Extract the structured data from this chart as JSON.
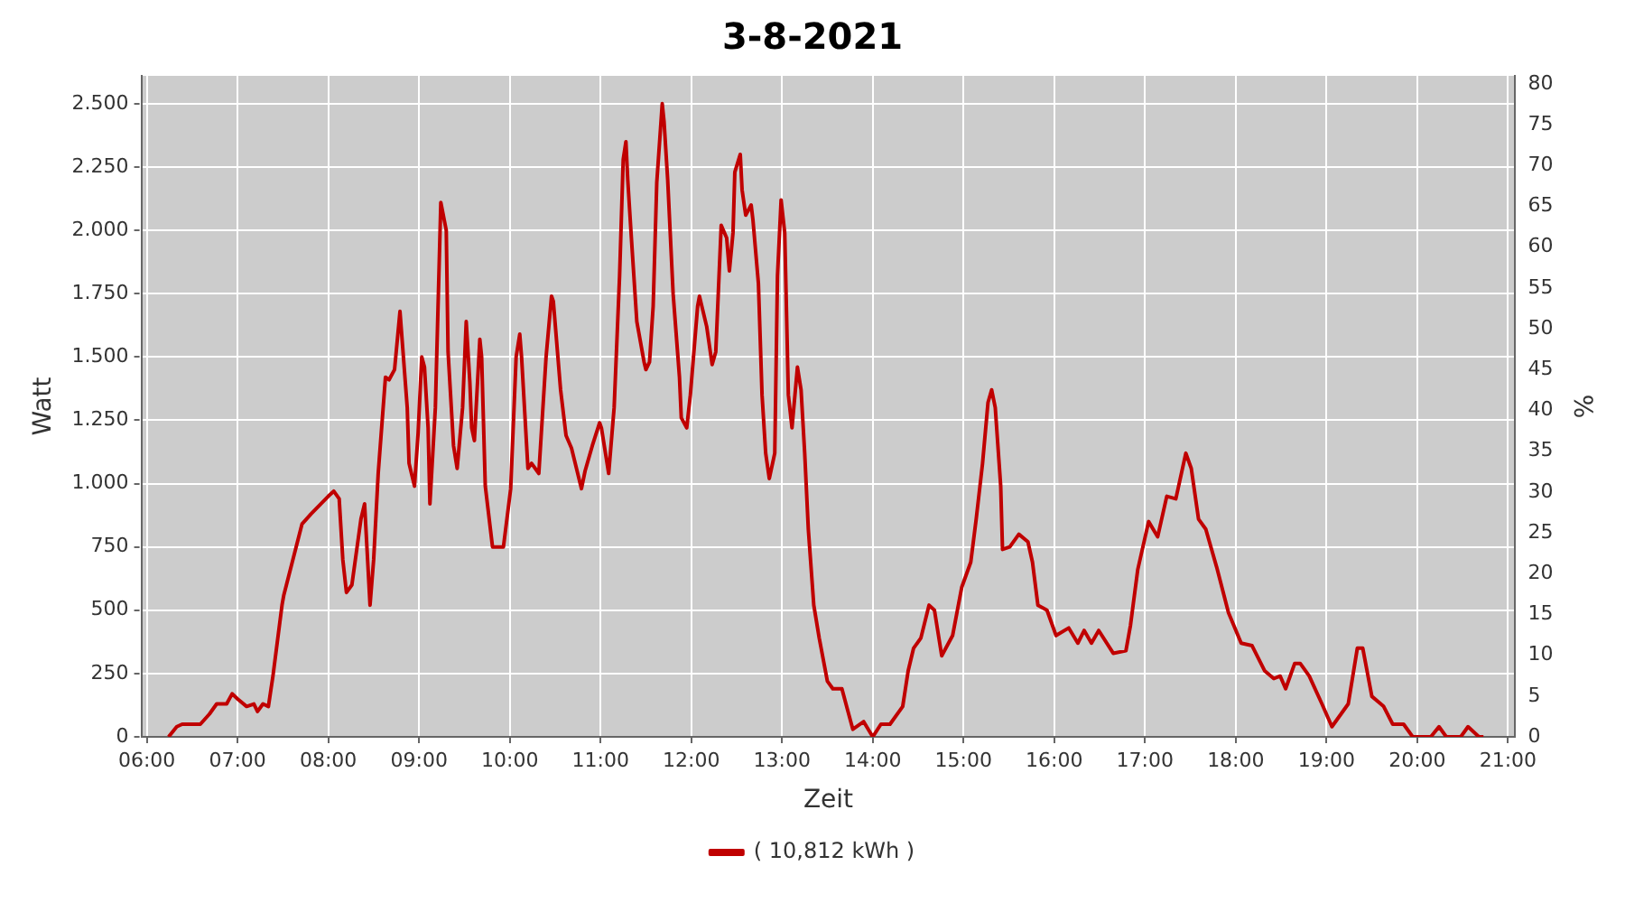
{
  "chart_data": {
    "type": "line",
    "title": "3-8-2021",
    "xlabel": "Zeit",
    "ylabel": "Watt",
    "y2label": "%",
    "x": [
      6.24,
      6.33,
      6.39,
      6.59,
      6.69,
      6.77,
      6.88,
      6.94,
      7.0,
      7.1,
      7.18,
      7.22,
      7.28,
      7.34,
      7.39,
      7.49,
      7.51,
      7.71,
      7.81,
      8.0,
      8.06,
      8.12,
      8.16,
      8.2,
      8.26,
      8.36,
      8.4,
      8.46,
      8.5,
      8.55,
      8.63,
      8.67,
      8.73,
      8.79,
      8.87,
      8.89,
      8.95,
      8.99,
      9.03,
      9.06,
      9.1,
      9.12,
      9.18,
      9.24,
      9.3,
      9.32,
      9.38,
      9.42,
      9.48,
      9.52,
      9.56,
      9.58,
      9.61,
      9.67,
      9.69,
      9.73,
      9.81,
      9.93,
      10.01,
      10.07,
      10.11,
      10.13,
      10.2,
      10.24,
      10.3,
      10.32,
      10.4,
      10.46,
      10.48,
      10.56,
      10.62,
      10.68,
      10.79,
      10.83,
      10.91,
      10.99,
      11.01,
      11.09,
      11.15,
      11.21,
      11.25,
      11.28,
      11.3,
      11.34,
      11.4,
      11.48,
      11.5,
      11.54,
      11.58,
      11.62,
      11.68,
      11.7,
      11.74,
      11.8,
      11.87,
      11.89,
      11.95,
      11.99,
      12.07,
      12.09,
      12.17,
      12.23,
      12.27,
      12.33,
      12.39,
      12.42,
      12.46,
      12.48,
      12.54,
      12.56,
      12.6,
      12.66,
      12.68,
      12.74,
      12.78,
      12.82,
      12.86,
      12.92,
      12.95,
      12.99,
      13.03,
      13.07,
      13.11,
      13.17,
      13.21,
      13.25,
      13.29,
      13.35,
      13.41,
      13.5,
      13.56,
      13.66,
      13.72,
      13.78,
      13.9,
      14.0,
      14.09,
      14.19,
      14.33,
      14.39,
      14.45,
      14.53,
      14.62,
      14.68,
      14.76,
      14.88,
      14.98,
      15.08,
      15.14,
      15.21,
      15.27,
      15.31,
      15.35,
      15.41,
      15.43,
      15.51,
      15.61,
      15.71,
      15.76,
      15.82,
      15.92,
      16.02,
      16.16,
      16.26,
      16.33,
      16.41,
      16.49,
      16.65,
      16.79,
      16.84,
      16.92,
      17.04,
      17.14,
      17.24,
      17.34,
      17.45,
      17.51,
      17.59,
      17.67,
      17.79,
      17.92,
      18.06,
      18.18,
      18.32,
      18.42,
      18.49,
      18.55,
      18.65,
      18.71,
      18.81,
      18.95,
      19.06,
      19.24,
      19.34,
      19.4,
      19.5,
      19.63,
      19.73,
      19.85,
      19.95,
      20.15,
      20.24,
      20.32,
      20.48,
      20.56,
      20.68,
      20.73
    ],
    "series": [
      {
        "name": "( 10,812 kWh )",
        "color": "#c00000",
        "values": [
          0,
          40,
          50,
          50,
          90,
          130,
          130,
          170,
          150,
          120,
          130,
          100,
          130,
          120,
          240,
          520,
          560,
          840,
          880,
          950,
          970,
          940,
          700,
          570,
          600,
          860,
          920,
          520,
          700,
          1040,
          1420,
          1410,
          1450,
          1680,
          1300,
          1080,
          990,
          1200,
          1500,
          1460,
          1220,
          920,
          1300,
          2110,
          2000,
          1520,
          1150,
          1060,
          1300,
          1640,
          1400,
          1220,
          1170,
          1570,
          1500,
          990,
          750,
          750,
          980,
          1500,
          1590,
          1500,
          1060,
          1080,
          1050,
          1040,
          1500,
          1740,
          1720,
          1370,
          1190,
          1140,
          980,
          1050,
          1150,
          1240,
          1220,
          1040,
          1300,
          1820,
          2280,
          2350,
          2200,
          1970,
          1640,
          1480,
          1450,
          1480,
          1700,
          2190,
          2500,
          2430,
          2200,
          1750,
          1420,
          1260,
          1220,
          1350,
          1700,
          1740,
          1620,
          1470,
          1520,
          2020,
          1970,
          1840,
          1990,
          2230,
          2300,
          2160,
          2060,
          2100,
          2040,
          1790,
          1350,
          1120,
          1020,
          1120,
          1820,
          2120,
          1990,
          1350,
          1220,
          1460,
          1370,
          1120,
          820,
          520,
          390,
          220,
          190,
          190,
          110,
          30,
          60,
          0,
          50,
          50,
          120,
          260,
          350,
          390,
          520,
          500,
          320,
          400,
          590,
          690,
          860,
          1080,
          1320,
          1370,
          1300,
          990,
          740,
          750,
          800,
          770,
          690,
          520,
          500,
          400,
          430,
          370,
          420,
          370,
          420,
          330,
          340,
          440,
          660,
          850,
          790,
          950,
          940,
          1120,
          1060,
          860,
          820,
          670,
          490,
          370,
          360,
          260,
          230,
          240,
          190,
          290,
          290,
          240,
          130,
          40,
          130,
          350,
          350,
          160,
          120,
          50,
          50,
          0,
          0,
          40,
          0,
          0,
          40,
          0,
          0
        ]
      }
    ],
    "xlim": [
      5.94,
      21.08
    ],
    "xticks": [
      {
        "value": 6,
        "label": "06:00"
      },
      {
        "value": 7,
        "label": "07:00"
      },
      {
        "value": 8,
        "label": "08:00"
      },
      {
        "value": 9,
        "label": "09:00"
      },
      {
        "value": 10,
        "label": "10:00"
      },
      {
        "value": 11,
        "label": "11:00"
      },
      {
        "value": 12,
        "label": "12:00"
      },
      {
        "value": 13,
        "label": "13:00"
      },
      {
        "value": 14,
        "label": "14:00"
      },
      {
        "value": 15,
        "label": "15:00"
      },
      {
        "value": 16,
        "label": "16:00"
      },
      {
        "value": 17,
        "label": "17:00"
      },
      {
        "value": 18,
        "label": "18:00"
      },
      {
        "value": 19,
        "label": "19:00"
      },
      {
        "value": 20,
        "label": "20:00"
      },
      {
        "value": 21,
        "label": "21:00"
      }
    ],
    "ylim": [
      0,
      2610
    ],
    "yticks": [
      0,
      250,
      500,
      750,
      {
        "value": 1000,
        "label": "1.000"
      },
      {
        "value": 1250,
        "label": "1.250"
      },
      {
        "value": 1500,
        "label": "1.500"
      },
      {
        "value": 1750,
        "label": "1.750"
      },
      {
        "value": 2000,
        "label": "2.000"
      },
      {
        "value": 2250,
        "label": "2.250"
      },
      {
        "value": 2500,
        "label": "2.500"
      }
    ],
    "y2lim": [
      0,
      81
    ],
    "y2ticks": [
      0,
      5,
      10,
      15,
      20,
      25,
      30,
      35,
      40,
      45,
      50,
      55,
      60,
      65,
      70,
      75,
      80
    ],
    "grid": true,
    "legend": "bottom",
    "marker": "none",
    "line_style": "solid"
  }
}
